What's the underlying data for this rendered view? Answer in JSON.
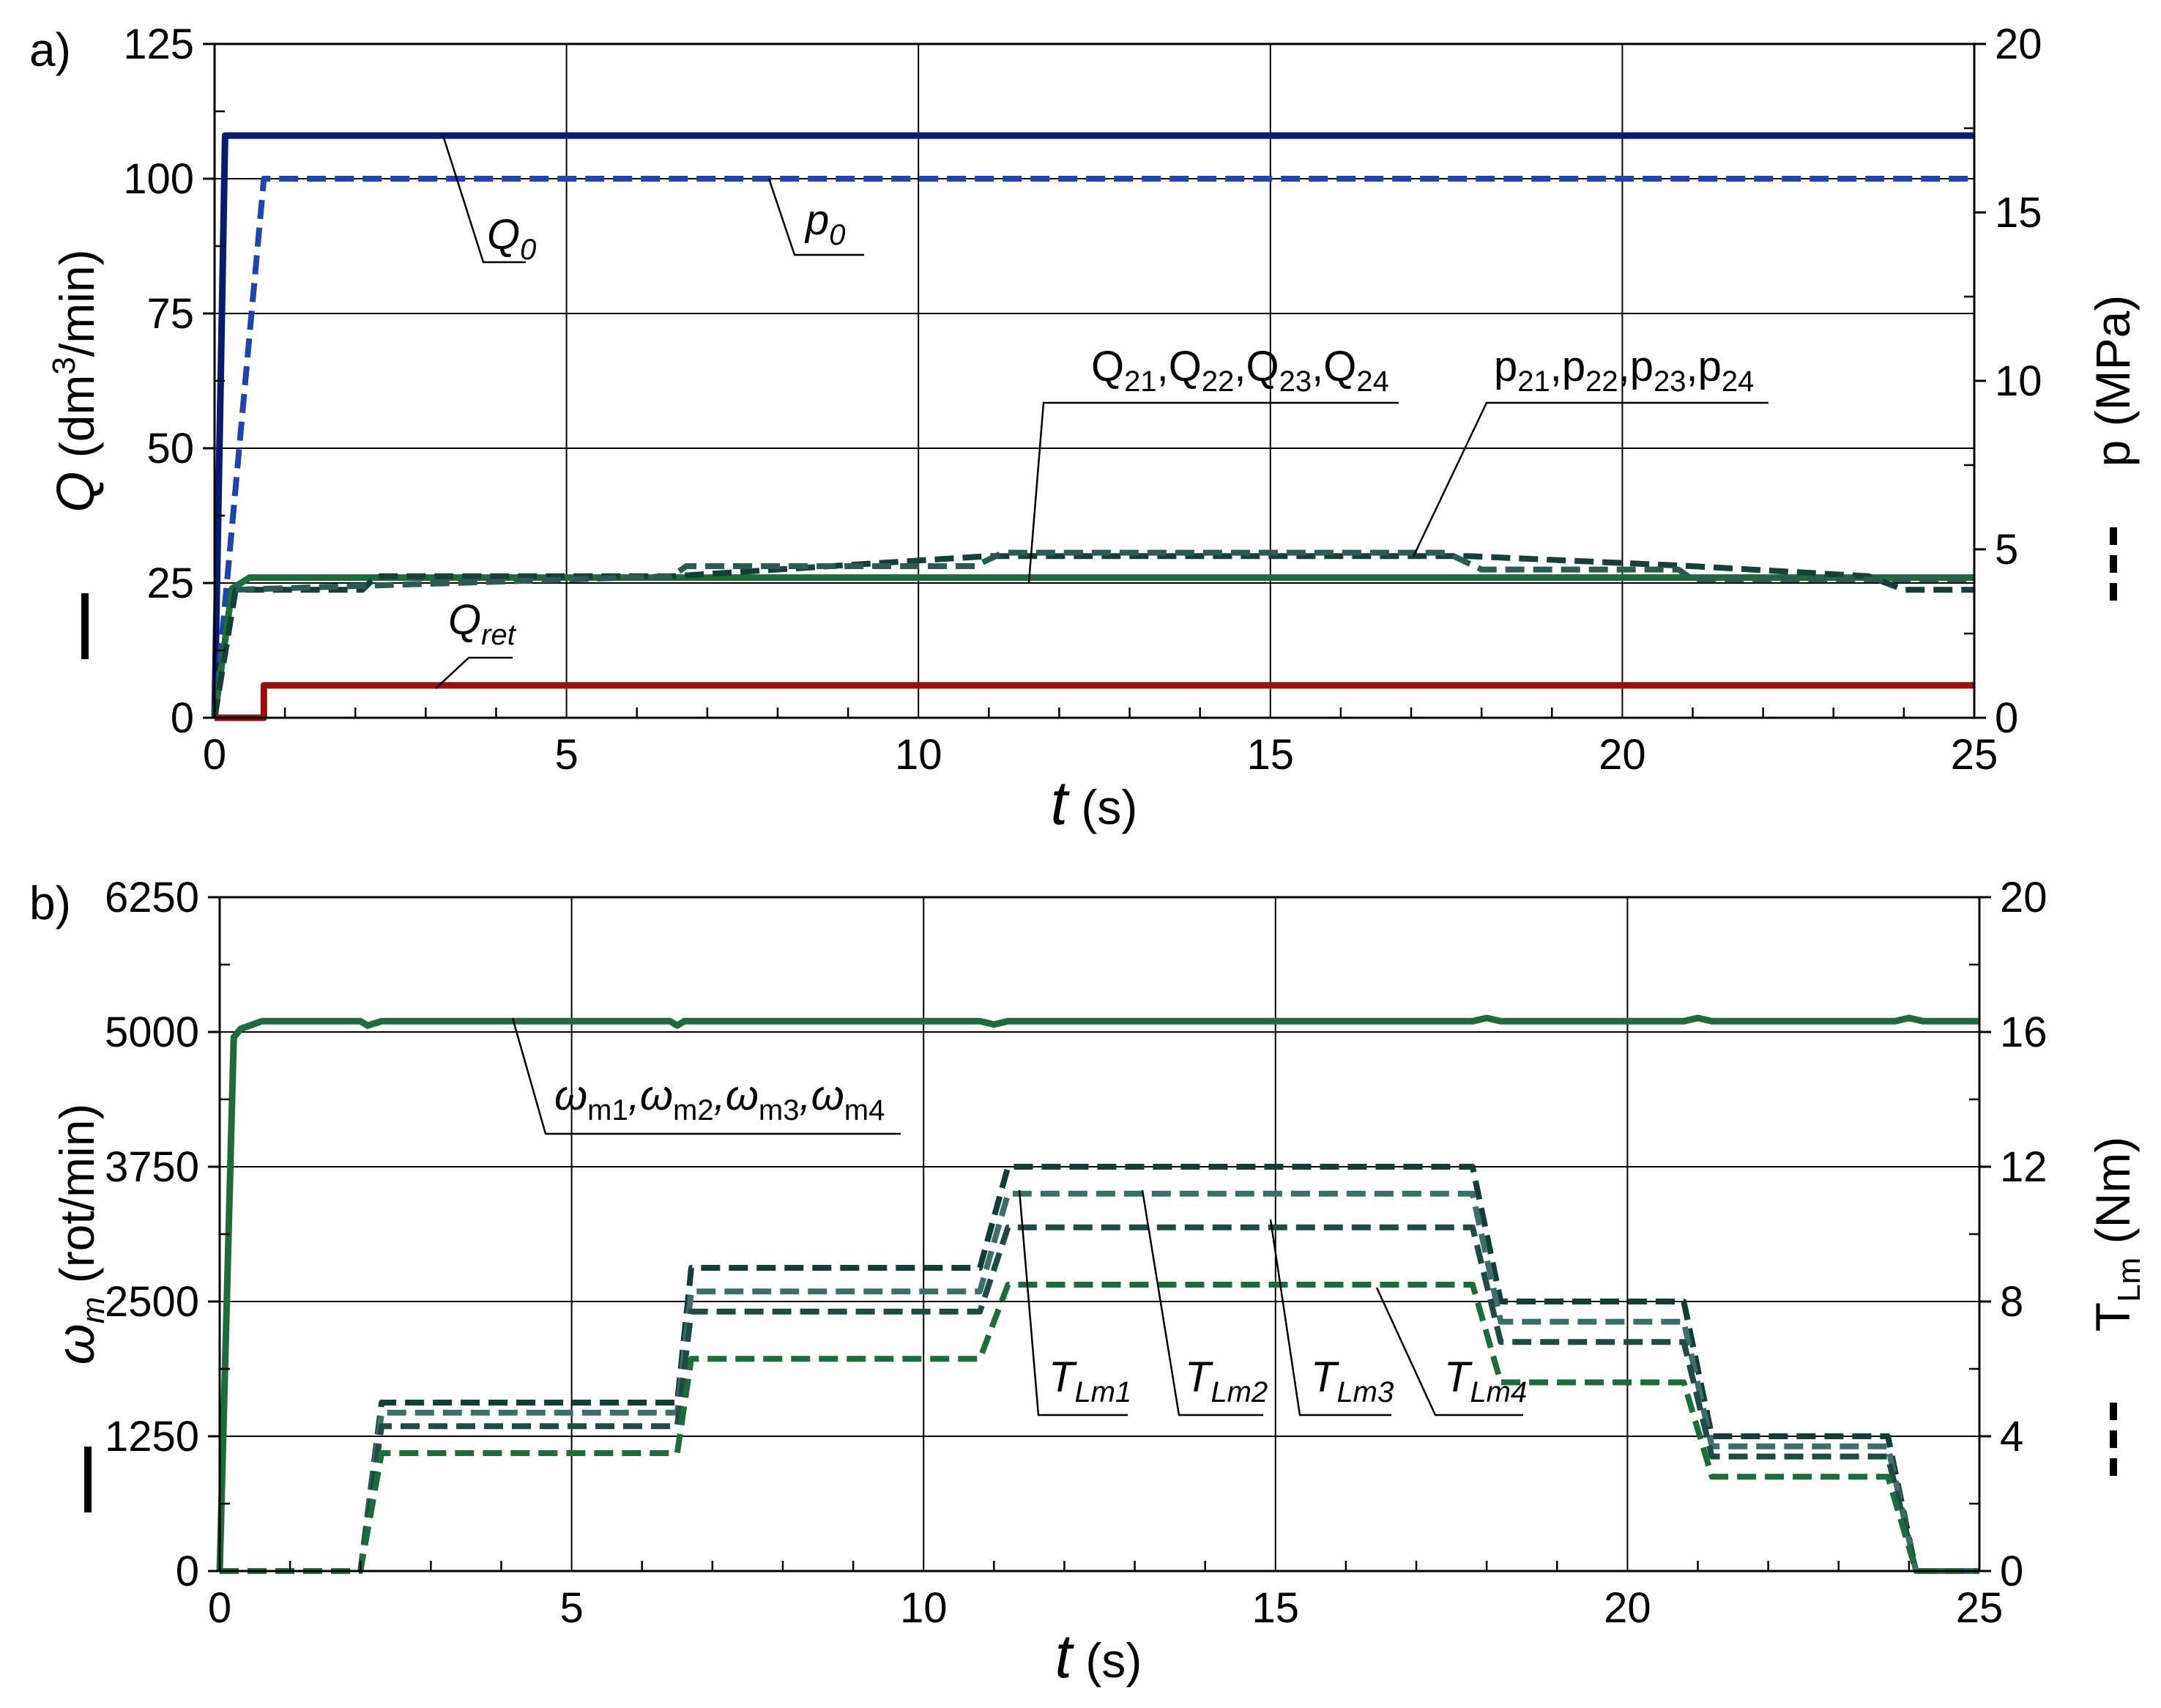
{
  "chart_data": [
    {
      "panel": "a)",
      "type": "line",
      "xlabel": {
        "symbol": "t",
        "unit": " (s)"
      },
      "xlim": [
        0,
        25
      ],
      "xticks": [
        "0",
        "5",
        "10",
        "15",
        "20",
        "25"
      ],
      "ylabel_left": {
        "symbol": "Q",
        "text": " (dm",
        "sup": "3",
        "rest": "/min)"
      },
      "ylim_left": [
        0,
        125
      ],
      "yticks_left": [
        "0",
        "25",
        "50",
        "75",
        "100",
        "125"
      ],
      "ylabel_right": {
        "text": "p (MPa)"
      },
      "ylim_right": [
        0,
        20
      ],
      "yticks_right": [
        "0",
        "5",
        "10",
        "15",
        "20"
      ],
      "grid": true,
      "series": [
        {
          "name": "Q0",
          "axis": "left",
          "style": "solid",
          "color": "#0a1a6e",
          "x": [
            0,
            0.15,
            25
          ],
          "y": [
            0,
            108,
            108
          ]
        },
        {
          "name": "p0",
          "axis": "right",
          "style": "dashed",
          "color": "#2244aa",
          "x": [
            0,
            0.7,
            25
          ],
          "y": [
            0,
            16,
            16
          ]
        },
        {
          "name": "Q21..Q24",
          "axis": "left",
          "style": "solid",
          "color": "#1e6b3c",
          "x": [
            0,
            0.25,
            0.5,
            25
          ],
          "y": [
            0,
            24,
            26,
            26
          ]
        },
        {
          "name": "p21..p24",
          "axis": "right",
          "style": "dashed",
          "color": "#163e3a",
          "x": [
            0,
            0.3,
            2.1,
            2.3,
            6.5,
            11,
            17.8,
            21,
            23.5,
            24,
            25
          ],
          "y": [
            0,
            3.8,
            3.8,
            4.2,
            4.2,
            4.8,
            4.8,
            4.5,
            4.2,
            3.8,
            3.8
          ]
        },
        {
          "name": "p21..p24 b",
          "axis": "right",
          "style": "dashed",
          "color": "#2d5a52",
          "x": [
            0.3,
            6.5,
            6.7,
            10.8,
            11.2,
            17.5,
            18,
            20.8,
            21,
            25
          ],
          "y": [
            3.8,
            4.2,
            4.5,
            4.5,
            4.9,
            4.9,
            4.4,
            4.4,
            4.1,
            4.1
          ]
        },
        {
          "name": "Qret",
          "axis": "left",
          "style": "solid",
          "color": "#9a1010",
          "x": [
            0,
            0.7,
            0.7,
            25
          ],
          "y": [
            0,
            0,
            6,
            6
          ]
        }
      ],
      "annotations": [
        {
          "base": "Q",
          "sub": "0",
          "italic": true
        },
        {
          "base": "p",
          "sub": "0",
          "italic": true
        },
        {
          "label": [
            "Q",
            "21",
            ",Q",
            "22",
            ",Q",
            "23",
            ",Q",
            "24"
          ]
        },
        {
          "label": [
            "p",
            "21",
            ",p",
            "22",
            ",p",
            "23",
            ",p",
            "24"
          ]
        },
        {
          "base": "Q",
          "sub": "ret",
          "italic": true
        }
      ]
    },
    {
      "panel": "b)",
      "type": "line",
      "xlabel": {
        "symbol": "t",
        "unit": " (s)"
      },
      "xlim": [
        0,
        25
      ],
      "xticks": [
        "0",
        "5",
        "10",
        "15",
        "20",
        "25"
      ],
      "ylabel_left": {
        "symbol": "ω",
        "sub": "m",
        "text": " (rot/min)"
      },
      "ylim_left": [
        0,
        6250
      ],
      "yticks_left": [
        "0",
        "1250",
        "2500",
        "3750",
        "5000",
        "6250"
      ],
      "ylabel_right": {
        "base": "T",
        "sub": "Lm",
        "text": " (Nm)"
      },
      "ylim_right": [
        0,
        20
      ],
      "yticks_right": [
        "0",
        "4",
        "8",
        "12",
        "16",
        "20"
      ],
      "grid": true,
      "series": [
        {
          "name": "ωm",
          "axis": "left",
          "style": "solid",
          "color": "#1e6b3c",
          "x": [
            0,
            0.2,
            0.3,
            0.6,
            2.0,
            2.1,
            2.3,
            6.4,
            6.5,
            6.6,
            10.8,
            11.0,
            11.2,
            17.8,
            18.0,
            18.2,
            20.8,
            21.0,
            21.2,
            23.8,
            24.0,
            24.2,
            25
          ],
          "y": [
            0,
            4950,
            5030,
            5100,
            5100,
            5060,
            5100,
            5100,
            5060,
            5100,
            5100,
            5070,
            5100,
            5100,
            5130,
            5100,
            5100,
            5130,
            5100,
            5100,
            5130,
            5100,
            5100
          ]
        },
        {
          "name": "TLm1",
          "axis": "right",
          "style": "dashed",
          "color": "#143c38",
          "x": [
            0,
            2.0,
            2.3,
            6.5,
            6.7,
            10.8,
            11.2,
            17.8,
            18.2,
            20.8,
            21.2,
            23.7,
            24.1,
            25
          ],
          "y": [
            0,
            0,
            5.0,
            5.0,
            9.0,
            9.0,
            12.0,
            12.0,
            8.0,
            8.0,
            4.0,
            4.0,
            0,
            0
          ]
        },
        {
          "name": "TLm2",
          "axis": "right",
          "style": "dashed",
          "color": "#3e6e6a",
          "x": [
            0,
            2.0,
            2.3,
            6.5,
            6.7,
            10.8,
            11.2,
            17.8,
            18.2,
            20.8,
            21.2,
            23.7,
            24.1,
            25
          ],
          "y": [
            0,
            0,
            4.7,
            4.7,
            8.3,
            8.3,
            11.2,
            11.2,
            7.4,
            7.4,
            3.7,
            3.7,
            0,
            0
          ]
        },
        {
          "name": "TLm3",
          "axis": "right",
          "style": "dashed",
          "color": "#204a46",
          "x": [
            0,
            2.0,
            2.3,
            6.5,
            6.7,
            10.8,
            11.2,
            17.8,
            18.2,
            20.8,
            21.2,
            23.7,
            24.1,
            25
          ],
          "y": [
            0,
            0,
            4.3,
            4.3,
            7.7,
            7.7,
            10.2,
            10.2,
            6.8,
            6.8,
            3.4,
            3.4,
            0,
            0
          ]
        },
        {
          "name": "TLm4",
          "axis": "right",
          "style": "dashed",
          "color": "#1e6b3c",
          "x": [
            0,
            2.0,
            2.3,
            6.5,
            6.7,
            10.8,
            11.2,
            17.8,
            18.2,
            20.8,
            21.2,
            23.7,
            24.1,
            25
          ],
          "y": [
            0,
            0,
            3.5,
            3.5,
            6.3,
            6.3,
            8.5,
            8.5,
            5.6,
            5.6,
            2.8,
            2.8,
            0,
            0
          ]
        }
      ],
      "annotations": [
        {
          "label": [
            "ω",
            "m1",
            ",ω",
            "m2",
            ",ω",
            "m3",
            ",ω",
            "m4"
          ],
          "italic_base": true
        },
        {
          "base": "T",
          "sub": "Lm1",
          "italic": true
        },
        {
          "base": "T",
          "sub": "Lm2",
          "italic": true
        },
        {
          "base": "T",
          "sub": "Lm3",
          "italic": true
        },
        {
          "base": "T",
          "sub": "Lm4",
          "italic": true
        }
      ]
    }
  ]
}
